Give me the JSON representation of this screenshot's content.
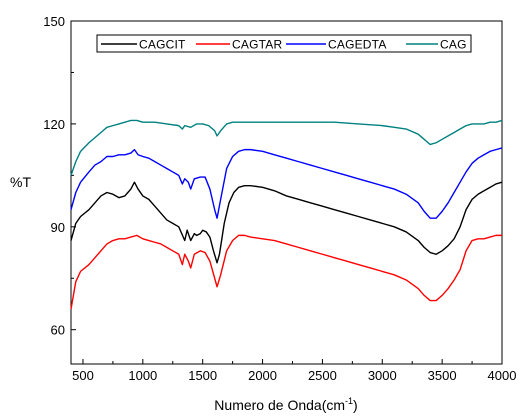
{
  "chart_data": {
    "type": "line",
    "xlabel": "Numero de Onda(cm",
    "xlabel_sup": "-1",
    "xlabel_close": ")",
    "ylabel": "%T",
    "xlim": [
      400,
      4000
    ],
    "ylim": [
      50,
      150
    ],
    "x_ticks": [
      500,
      1000,
      1500,
      2000,
      2500,
      3000,
      3500,
      4000
    ],
    "y_ticks": [
      60,
      90,
      120,
      150
    ],
    "legend_position": "top",
    "series": [
      {
        "name": "CAGCIT",
        "color": "#000000",
        "points": [
          [
            400,
            86
          ],
          [
            440,
            91
          ],
          [
            480,
            93
          ],
          [
            550,
            95
          ],
          [
            600,
            97
          ],
          [
            650,
            99
          ],
          [
            700,
            100
          ],
          [
            750,
            99.5
          ],
          [
            800,
            98.5
          ],
          [
            850,
            99
          ],
          [
            900,
            101
          ],
          [
            930,
            103
          ],
          [
            960,
            101
          ],
          [
            1000,
            99
          ],
          [
            1050,
            98
          ],
          [
            1100,
            96
          ],
          [
            1150,
            94
          ],
          [
            1200,
            92
          ],
          [
            1250,
            91
          ],
          [
            1300,
            90
          ],
          [
            1350,
            86
          ],
          [
            1370,
            89
          ],
          [
            1400,
            86
          ],
          [
            1430,
            88
          ],
          [
            1450,
            87.5
          ],
          [
            1480,
            88
          ],
          [
            1500,
            89
          ],
          [
            1530,
            88.5
          ],
          [
            1560,
            87
          ],
          [
            1590,
            83
          ],
          [
            1620,
            79.5
          ],
          [
            1640,
            82
          ],
          [
            1680,
            91
          ],
          [
            1720,
            97
          ],
          [
            1760,
            100
          ],
          [
            1800,
            101.5
          ],
          [
            1850,
            102
          ],
          [
            1900,
            102
          ],
          [
            2000,
            101.5
          ],
          [
            2100,
            100.5
          ],
          [
            2200,
            99
          ],
          [
            2300,
            98
          ],
          [
            2400,
            97
          ],
          [
            2500,
            96
          ],
          [
            2600,
            95
          ],
          [
            2700,
            94
          ],
          [
            2800,
            93
          ],
          [
            2900,
            92
          ],
          [
            3000,
            91
          ],
          [
            3100,
            90
          ],
          [
            3200,
            88.5
          ],
          [
            3300,
            86
          ],
          [
            3350,
            84
          ],
          [
            3400,
            82.5
          ],
          [
            3450,
            82
          ],
          [
            3500,
            83
          ],
          [
            3550,
            84.5
          ],
          [
            3600,
            86.5
          ],
          [
            3650,
            90
          ],
          [
            3700,
            95
          ],
          [
            3750,
            98
          ],
          [
            3800,
            99.5
          ],
          [
            3850,
            100.5
          ],
          [
            3900,
            101.5
          ],
          [
            3950,
            102.5
          ],
          [
            4000,
            103
          ]
        ]
      },
      {
        "name": "CAGTAR",
        "color": "#ff0000",
        "points": [
          [
            400,
            66
          ],
          [
            440,
            74
          ],
          [
            480,
            77
          ],
          [
            550,
            79
          ],
          [
            600,
            81
          ],
          [
            650,
            83
          ],
          [
            700,
            85
          ],
          [
            750,
            86
          ],
          [
            800,
            86.5
          ],
          [
            850,
            86.5
          ],
          [
            900,
            87
          ],
          [
            950,
            87.5
          ],
          [
            1000,
            86.5
          ],
          [
            1050,
            86
          ],
          [
            1100,
            85.5
          ],
          [
            1150,
            85
          ],
          [
            1200,
            84
          ],
          [
            1250,
            83
          ],
          [
            1300,
            82
          ],
          [
            1330,
            79
          ],
          [
            1350,
            82
          ],
          [
            1380,
            80
          ],
          [
            1400,
            78
          ],
          [
            1430,
            82
          ],
          [
            1480,
            83
          ],
          [
            1520,
            82.5
          ],
          [
            1560,
            80
          ],
          [
            1600,
            75
          ],
          [
            1620,
            72.5
          ],
          [
            1650,
            76
          ],
          [
            1700,
            83
          ],
          [
            1750,
            86
          ],
          [
            1800,
            87.5
          ],
          [
            1850,
            87.5
          ],
          [
            1900,
            87
          ],
          [
            2000,
            86.5
          ],
          [
            2100,
            86
          ],
          [
            2200,
            85
          ],
          [
            2300,
            84
          ],
          [
            2400,
            83
          ],
          [
            2500,
            82
          ],
          [
            2600,
            81
          ],
          [
            2700,
            80
          ],
          [
            2800,
            79
          ],
          [
            2900,
            78
          ],
          [
            3000,
            77
          ],
          [
            3100,
            76
          ],
          [
            3200,
            74.5
          ],
          [
            3300,
            72
          ],
          [
            3350,
            70
          ],
          [
            3400,
            68.5
          ],
          [
            3450,
            68.5
          ],
          [
            3500,
            70
          ],
          [
            3550,
            72
          ],
          [
            3600,
            74.5
          ],
          [
            3650,
            77.5
          ],
          [
            3700,
            83
          ],
          [
            3750,
            86
          ],
          [
            3800,
            86.5
          ],
          [
            3850,
            86.5
          ],
          [
            3900,
            87
          ],
          [
            3950,
            87.5
          ],
          [
            4000,
            87.5
          ]
        ]
      },
      {
        "name": "CAGEDTA",
        "color": "#0000ff",
        "points": [
          [
            400,
            95
          ],
          [
            440,
            100
          ],
          [
            480,
            103
          ],
          [
            550,
            106
          ],
          [
            600,
            108
          ],
          [
            650,
            109
          ],
          [
            700,
            110.5
          ],
          [
            750,
            110.5
          ],
          [
            800,
            111
          ],
          [
            850,
            111
          ],
          [
            900,
            111.5
          ],
          [
            930,
            112.5
          ],
          [
            960,
            111
          ],
          [
            1000,
            110.5
          ],
          [
            1050,
            110
          ],
          [
            1100,
            109
          ],
          [
            1150,
            108
          ],
          [
            1200,
            107
          ],
          [
            1250,
            106
          ],
          [
            1300,
            105
          ],
          [
            1330,
            102.5
          ],
          [
            1350,
            104
          ],
          [
            1380,
            103
          ],
          [
            1400,
            101
          ],
          [
            1430,
            104
          ],
          [
            1480,
            104.5
          ],
          [
            1520,
            104.5
          ],
          [
            1560,
            101
          ],
          [
            1600,
            95
          ],
          [
            1620,
            92.5
          ],
          [
            1650,
            98
          ],
          [
            1700,
            107
          ],
          [
            1750,
            110.5
          ],
          [
            1800,
            112
          ],
          [
            1850,
            112.5
          ],
          [
            1900,
            112.5
          ],
          [
            2000,
            112
          ],
          [
            2100,
            111
          ],
          [
            2200,
            110
          ],
          [
            2300,
            109
          ],
          [
            2400,
            108
          ],
          [
            2500,
            107
          ],
          [
            2600,
            106
          ],
          [
            2700,
            105
          ],
          [
            2800,
            104
          ],
          [
            2900,
            103
          ],
          [
            3000,
            102
          ],
          [
            3100,
            101
          ],
          [
            3200,
            99.5
          ],
          [
            3300,
            97
          ],
          [
            3350,
            94.5
          ],
          [
            3400,
            92.5
          ],
          [
            3450,
            92.5
          ],
          [
            3500,
            94.5
          ],
          [
            3550,
            97
          ],
          [
            3600,
            100
          ],
          [
            3650,
            103
          ],
          [
            3700,
            106
          ],
          [
            3750,
            108.5
          ],
          [
            3800,
            110
          ],
          [
            3850,
            111
          ],
          [
            3900,
            112
          ],
          [
            3950,
            112.5
          ],
          [
            4000,
            113
          ]
        ]
      },
      {
        "name": "CAG",
        "color": "#008080",
        "points": [
          [
            400,
            105
          ],
          [
            440,
            109
          ],
          [
            480,
            112
          ],
          [
            550,
            114.5
          ],
          [
            600,
            116
          ],
          [
            650,
            117.5
          ],
          [
            700,
            119
          ],
          [
            750,
            119.5
          ],
          [
            800,
            120
          ],
          [
            850,
            120.5
          ],
          [
            900,
            121
          ],
          [
            950,
            121
          ],
          [
            1000,
            120.5
          ],
          [
            1100,
            120.5
          ],
          [
            1200,
            120
          ],
          [
            1300,
            119.5
          ],
          [
            1330,
            118.5
          ],
          [
            1350,
            119.5
          ],
          [
            1400,
            119
          ],
          [
            1450,
            120
          ],
          [
            1500,
            120
          ],
          [
            1550,
            119.5
          ],
          [
            1600,
            118
          ],
          [
            1620,
            116.5
          ],
          [
            1650,
            118
          ],
          [
            1700,
            120
          ],
          [
            1750,
            120.5
          ],
          [
            1800,
            120.5
          ],
          [
            1850,
            120.5
          ],
          [
            1900,
            120.5
          ],
          [
            2000,
            120.5
          ],
          [
            2200,
            120.5
          ],
          [
            2400,
            120.5
          ],
          [
            2600,
            120.5
          ],
          [
            2800,
            120
          ],
          [
            3000,
            119.5
          ],
          [
            3100,
            119
          ],
          [
            3200,
            118.5
          ],
          [
            3300,
            117
          ],
          [
            3350,
            115.5
          ],
          [
            3400,
            114
          ],
          [
            3450,
            114.5
          ],
          [
            3500,
            115.5
          ],
          [
            3550,
            116.5
          ],
          [
            3600,
            117.5
          ],
          [
            3650,
            118.5
          ],
          [
            3700,
            119.5
          ],
          [
            3750,
            120
          ],
          [
            3800,
            120
          ],
          [
            3850,
            120
          ],
          [
            3900,
            120.5
          ],
          [
            3950,
            120.5
          ],
          [
            4000,
            121
          ]
        ]
      }
    ]
  }
}
